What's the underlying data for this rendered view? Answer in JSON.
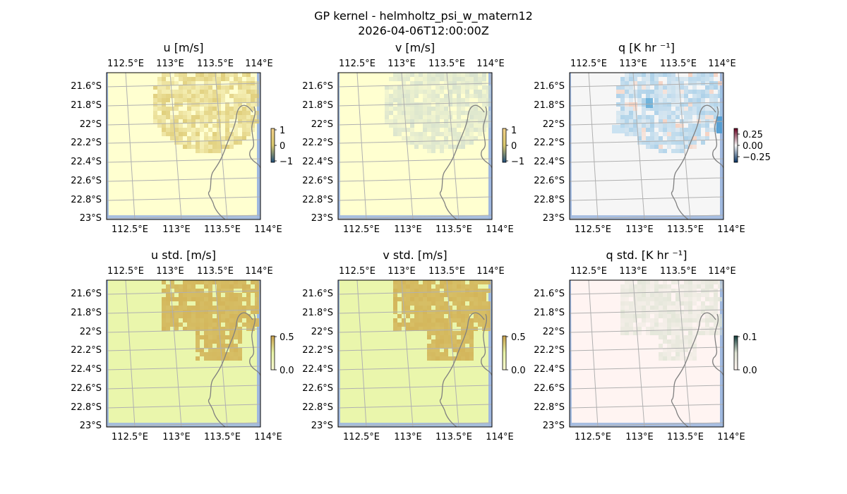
{
  "figure": {
    "title_line1": "GP kernel - helmholtz_psi_w_matern12",
    "title_line2": "2026-04-06T12:00:00Z"
  },
  "colors": {
    "ocean": "#9fb8df",
    "grid": "#b0b0b0",
    "coast": "#808080",
    "frame": "#000000"
  },
  "chart_data": [
    {
      "type": "heatmap",
      "title": "u [m/s]",
      "lon_ticks": [
        "112.5°E",
        "113°E",
        "113.5°E",
        "114°E"
      ],
      "lat_ticks": [
        "21.6°S",
        "21.8°S",
        "22°S",
        "22.2°S",
        "22.4°S",
        "22.6°S",
        "22.8°S",
        "23°S"
      ],
      "colorbar": {
        "ticks": [
          "1",
          "0",
          "−1"
        ],
        "range": [
          -1,
          1
        ],
        "colors": [
          "#f2d089",
          "#d8c86d",
          "#20507c"
        ]
      },
      "background_color": "#ffffd0",
      "field_color": "#d9c368"
    },
    {
      "type": "heatmap",
      "title": "v [m/s]",
      "lon_ticks": [
        "112.5°E",
        "113°E",
        "113.5°E",
        "114°E"
      ],
      "lat_ticks": [
        "21.6°S",
        "21.8°S",
        "22°S",
        "22.2°S",
        "22.4°S",
        "22.6°S",
        "22.8°S",
        "23°S"
      ],
      "colorbar": {
        "ticks": [
          "1",
          "0",
          "−1"
        ],
        "range": [
          -1,
          1
        ],
        "colors": [
          "#f2d089",
          "#d8c86d",
          "#20507c"
        ]
      },
      "background_color": "#ffffd0",
      "field_color": "#cfdccd"
    },
    {
      "type": "heatmap",
      "title": "q [K hr ⁻¹]",
      "lon_ticks": [
        "112.5°E",
        "113°E",
        "113.5°E",
        "114°E"
      ],
      "lat_ticks": [
        "21.6°S",
        "21.8°S",
        "22°S",
        "22.2°S",
        "22.4°S",
        "22.6°S",
        "22.8°S",
        "23°S"
      ],
      "colorbar": {
        "ticks": [
          "0.25",
          "0.00",
          "−0.25"
        ],
        "range": [
          -0.4,
          0.4
        ],
        "colors": [
          "#67001f",
          "#f7f7f7",
          "#053061"
        ]
      },
      "background_color": "#f6f6f6",
      "field_color": "#9cc9e6"
    },
    {
      "type": "heatmap",
      "title": "u std. [m/s]",
      "lon_ticks": [
        "112.5°E",
        "113°E",
        "113.5°E",
        "114°E"
      ],
      "lat_ticks": [
        "21.6°S",
        "21.8°S",
        "22°S",
        "22.2°S",
        "22.4°S",
        "22.6°S",
        "22.8°S",
        "23°S"
      ],
      "colorbar": {
        "ticks": [
          "0.5",
          "0.0"
        ],
        "range": [
          0,
          0.6
        ],
        "colors": [
          "#c8a04a",
          "#e8f4a8",
          "#f8f8d0"
        ]
      },
      "background_color": "#eaf6ac",
      "field_color": "#d3b55a"
    },
    {
      "type": "heatmap",
      "title": "v std. [m/s]",
      "lon_ticks": [
        "112.5°E",
        "113°E",
        "113.5°E",
        "114°E"
      ],
      "lat_ticks": [
        "21.6°S",
        "21.8°S",
        "22°S",
        "22.2°S",
        "22.4°S",
        "22.6°S",
        "22.8°S",
        "23°S"
      ],
      "colorbar": {
        "ticks": [
          "0.5",
          "0.0"
        ],
        "range": [
          0,
          0.6
        ],
        "colors": [
          "#c8a04a",
          "#e8f4a8",
          "#f8f8d0"
        ]
      },
      "background_color": "#eaf6ac",
      "field_color": "#d3b55a"
    },
    {
      "type": "heatmap",
      "title": "q std. [K hr ⁻¹]",
      "lon_ticks": [
        "112.5°E",
        "113°E",
        "113.5°E",
        "114°E"
      ],
      "lat_ticks": [
        "21.6°S",
        "21.8°S",
        "22°S",
        "22.2°S",
        "22.4°S",
        "22.6°S",
        "22.8°S",
        "23°S"
      ],
      "colorbar": {
        "ticks": [
          "0.1",
          "0.0"
        ],
        "range": [
          0,
          0.12
        ],
        "colors": [
          "#0e3a3a",
          "#dfe4d4",
          "#fff4f0"
        ]
      },
      "background_color": "#fff4f2",
      "field_color": "#dde3d3"
    }
  ]
}
